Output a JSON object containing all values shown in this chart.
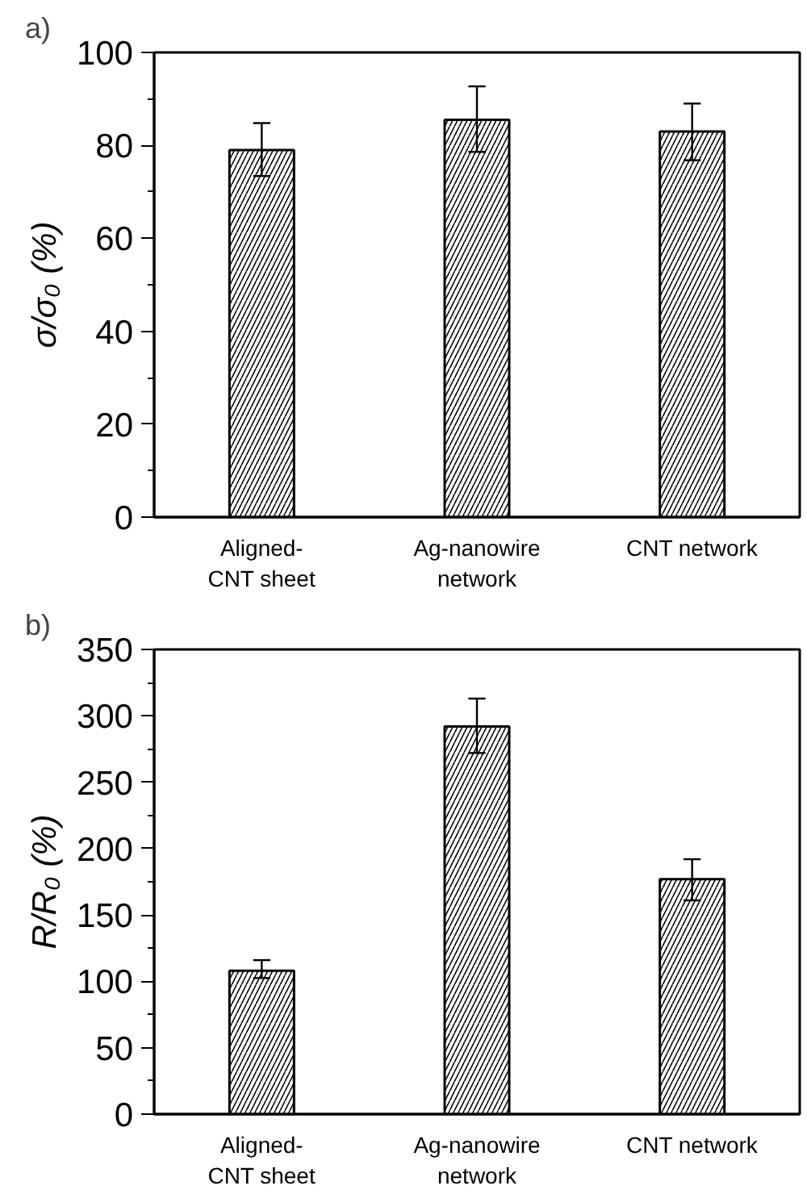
{
  "chart_data": [
    {
      "type": "bar",
      "title": "a)",
      "ylabel": "σ/σ₀ (%)",
      "categories": [
        "Aligned-\nCNT sheet",
        "Ag-nanowire\nnetwork",
        "CNT network"
      ],
      "values": [
        79,
        85.5,
        83
      ],
      "errors": [
        [
          73.4,
          84.8
        ],
        [
          78.6,
          92.7
        ],
        [
          76.8,
          89
        ]
      ],
      "color": "#ffffff",
      "ylim": [
        0,
        100
      ],
      "yticks": [
        0,
        {
          "value": 10,
          "label": null
        },
        20,
        {
          "value": 30,
          "label": null
        },
        40,
        {
          "value": 50,
          "label": null
        },
        60,
        {
          "value": 70,
          "label": null
        },
        80,
        {
          "value": 90,
          "label": null
        },
        100
      ],
      "grid": false
    },
    {
      "type": "bar",
      "title": "b)",
      "ylabel": "R/R₀ (%)",
      "categories": [
        "Aligned-\nCNT sheet",
        "Ag-nanowire\nnetwork",
        "CNT network"
      ],
      "values": [
        108,
        292,
        177
      ],
      "errors": [
        [
          102.5,
          116
        ],
        [
          272,
          313
        ],
        [
          161,
          192
        ]
      ],
      "color": "#ffffff",
      "ylim": [
        0,
        350
      ],
      "yticks": [
        0,
        {
          "value": 25,
          "label": null
        },
        50,
        {
          "value": 75,
          "label": null
        },
        100,
        {
          "value": 125,
          "label": null
        },
        150,
        {
          "value": 175,
          "label": null
        },
        200,
        {
          "value": 225,
          "label": null
        },
        250,
        {
          "value": 275,
          "label": null
        },
        300,
        {
          "value": 325,
          "label": null
        },
        350
      ],
      "grid": false
    }
  ]
}
